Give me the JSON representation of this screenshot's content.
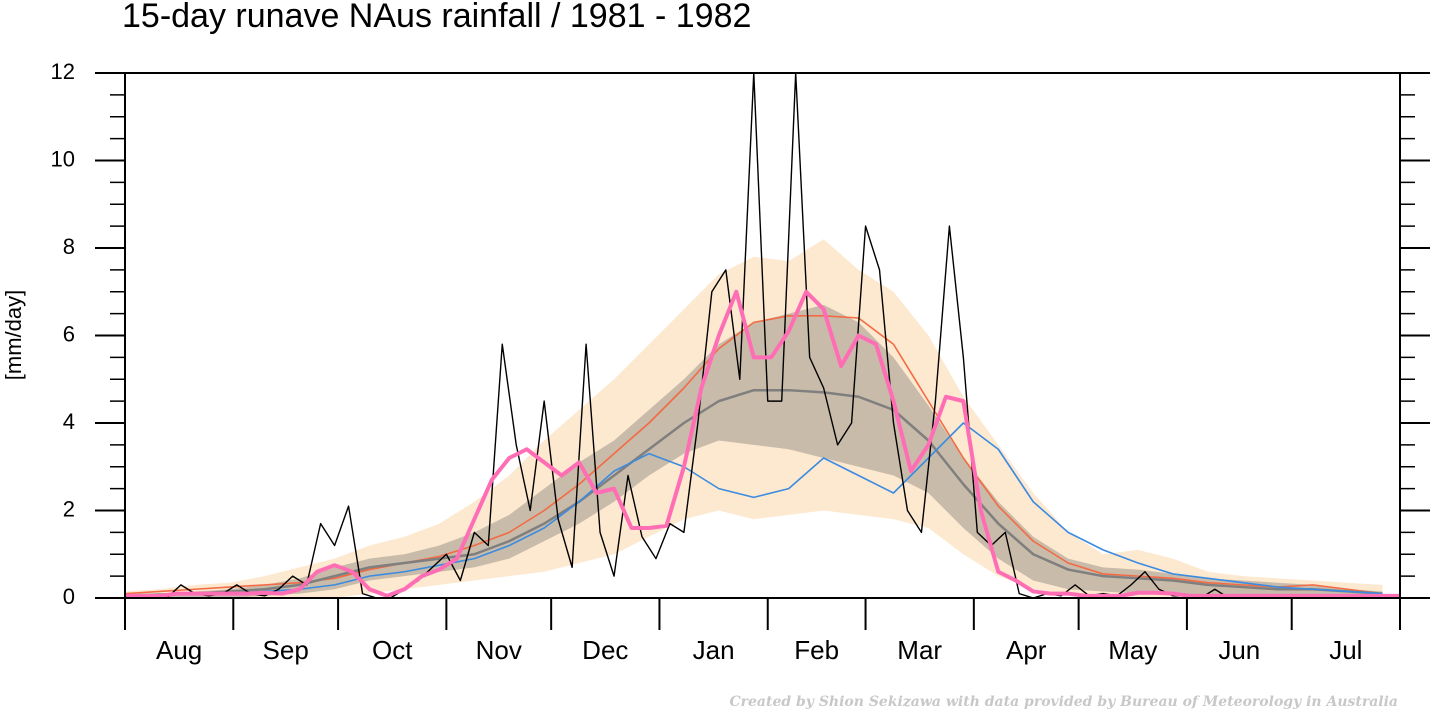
{
  "chart_data": {
    "type": "line",
    "title": "15-day runave NAus rainfall  /  1981 - 1982",
    "ylabel": "[mm/day]",
    "credit": "Created by Shion Sekizawa with data provided by Bureau of Meteorology in Australia",
    "months": [
      "Aug",
      "Sep",
      "Oct",
      "Nov",
      "Dec",
      "Jan",
      "Feb",
      "Mar",
      "Apr",
      "May",
      "Jun",
      "Jul"
    ],
    "xlim": [
      0,
      365
    ],
    "xticks": [
      0,
      31,
      61,
      92,
      122,
      153,
      184,
      212,
      243,
      273,
      304,
      334,
      365
    ],
    "ylim": [
      0,
      12
    ],
    "yticks": [
      0,
      2,
      4,
      6,
      8,
      10,
      12
    ],
    "yminorticks": [
      0.5,
      1,
      1.5,
      2.5,
      3,
      3.5,
      4.5,
      5,
      5.5,
      6.5,
      7,
      7.5,
      8.5,
      9,
      9.5,
      10.5,
      11,
      11.5
    ],
    "bands": [
      {
        "color": "#fde8d0",
        "x": [
          0,
          10,
          20,
          30,
          40,
          50,
          60,
          70,
          80,
          90,
          100,
          110,
          120,
          130,
          140,
          150,
          160,
          170,
          180,
          190,
          200,
          210,
          220,
          230,
          240,
          250,
          260,
          270,
          280,
          290,
          300,
          310,
          320,
          330,
          340,
          350,
          360
        ],
        "upper": [
          0.15,
          0.2,
          0.3,
          0.35,
          0.5,
          0.7,
          0.9,
          1.2,
          1.4,
          1.7,
          2.2,
          2.8,
          3.6,
          4.3,
          5.0,
          5.8,
          6.6,
          7.4,
          7.8,
          7.7,
          8.2,
          7.5,
          7.0,
          6.0,
          4.6,
          3.5,
          2.4,
          1.5,
          1.0,
          1.1,
          0.9,
          0.6,
          0.5,
          0.45,
          0.4,
          0.35,
          0.3
        ],
        "lower": [
          0,
          0,
          0,
          0,
          0,
          0,
          0,
          0.1,
          0.2,
          0.3,
          0.4,
          0.5,
          0.6,
          0.8,
          1.0,
          1.4,
          1.8,
          2.0,
          1.8,
          1.9,
          2.0,
          1.9,
          1.8,
          1.6,
          1.0,
          0.5,
          0.2,
          0.1,
          0.05,
          0,
          0,
          0,
          0,
          0,
          0,
          0,
          0
        ]
      },
      {
        "color": "#c9bba9",
        "x": [
          0,
          10,
          20,
          30,
          40,
          50,
          60,
          70,
          80,
          90,
          100,
          110,
          120,
          130,
          140,
          150,
          160,
          170,
          180,
          190,
          200,
          210,
          220,
          230,
          240,
          250,
          260,
          270,
          280,
          290,
          300,
          310,
          320,
          330,
          340,
          350,
          360
        ],
        "upper": [
          0.1,
          0.1,
          0.15,
          0.2,
          0.3,
          0.45,
          0.7,
          0.9,
          1.0,
          1.2,
          1.5,
          1.9,
          2.5,
          3.1,
          3.6,
          4.3,
          5.0,
          5.8,
          6.3,
          6.5,
          6.7,
          6.3,
          5.5,
          4.4,
          3.2,
          2.2,
          1.4,
          0.9,
          0.7,
          0.65,
          0.55,
          0.45,
          0.4,
          0.35,
          0.3,
          0.2,
          0.15
        ],
        "lower": [
          0,
          0,
          0,
          0,
          0.05,
          0.1,
          0.2,
          0.4,
          0.5,
          0.6,
          0.7,
          0.9,
          1.3,
          1.7,
          2.2,
          2.8,
          3.3,
          3.6,
          3.5,
          3.4,
          3.2,
          3.0,
          2.8,
          2.4,
          1.6,
          0.9,
          0.4,
          0.2,
          0.15,
          0.1,
          0.1,
          0.05,
          0.05,
          0.05,
          0.05,
          0.05,
          0
        ]
      }
    ],
    "series": [
      {
        "color": "#f26b45",
        "width": 1.6,
        "x": [
          0,
          10,
          20,
          30,
          40,
          50,
          60,
          70,
          80,
          90,
          100,
          110,
          120,
          130,
          140,
          150,
          160,
          170,
          180,
          190,
          200,
          210,
          220,
          230,
          240,
          250,
          260,
          270,
          280,
          290,
          300,
          310,
          320,
          330,
          340,
          350,
          360
        ],
        "values": [
          0.1,
          0.15,
          0.2,
          0.25,
          0.3,
          0.35,
          0.45,
          0.65,
          0.8,
          0.95,
          1.2,
          1.5,
          2.0,
          2.6,
          3.3,
          4.0,
          4.8,
          5.7,
          6.3,
          6.45,
          6.45,
          6.4,
          5.8,
          4.5,
          3.2,
          2.1,
          1.3,
          0.8,
          0.55,
          0.5,
          0.45,
          0.35,
          0.3,
          0.25,
          0.3,
          0.2,
          0.1
        ]
      },
      {
        "color": "#7f7f7f",
        "width": 2.5,
        "x": [
          0,
          10,
          20,
          30,
          40,
          50,
          60,
          70,
          80,
          90,
          100,
          110,
          120,
          130,
          140,
          150,
          160,
          170,
          180,
          190,
          200,
          210,
          220,
          230,
          240,
          250,
          260,
          270,
          280,
          290,
          300,
          310,
          320,
          330,
          340,
          350,
          360
        ],
        "values": [
          0.05,
          0.08,
          0.1,
          0.15,
          0.2,
          0.3,
          0.5,
          0.7,
          0.8,
          0.9,
          1.0,
          1.3,
          1.7,
          2.2,
          2.8,
          3.4,
          4.0,
          4.5,
          4.75,
          4.75,
          4.7,
          4.6,
          4.3,
          3.6,
          2.6,
          1.7,
          1.0,
          0.65,
          0.5,
          0.45,
          0.4,
          0.3,
          0.25,
          0.2,
          0.2,
          0.15,
          0.1
        ]
      },
      {
        "color": "#3b8ce0",
        "width": 1.6,
        "x": [
          0,
          10,
          20,
          30,
          40,
          50,
          60,
          70,
          80,
          90,
          100,
          110,
          120,
          130,
          140,
          150,
          160,
          170,
          180,
          190,
          200,
          210,
          220,
          230,
          240,
          250,
          260,
          270,
          280,
          290,
          300,
          310,
          320,
          330,
          340,
          350,
          360
        ],
        "values": [
          0.05,
          0.05,
          0.1,
          0.1,
          0.15,
          0.2,
          0.3,
          0.5,
          0.6,
          0.75,
          0.9,
          1.2,
          1.6,
          2.2,
          2.9,
          3.3,
          3.0,
          2.5,
          2.3,
          2.5,
          3.2,
          2.8,
          2.4,
          3.2,
          4.0,
          3.4,
          2.2,
          1.5,
          1.1,
          0.8,
          0.55,
          0.45,
          0.35,
          0.25,
          0.2,
          0.15,
          0.1
        ]
      },
      {
        "color": "#000000",
        "width": 1.4,
        "x": [
          0,
          4,
          8,
          12,
          16,
          20,
          24,
          28,
          32,
          36,
          40,
          44,
          48,
          52,
          56,
          60,
          64,
          68,
          72,
          76,
          80,
          84,
          88,
          92,
          96,
          100,
          104,
          108,
          112,
          116,
          120,
          124,
          128,
          132,
          136,
          140,
          144,
          148,
          152,
          156,
          160,
          164,
          168,
          172,
          176,
          180,
          184,
          188,
          192,
          196,
          200,
          204,
          208,
          212,
          216,
          220,
          224,
          228,
          232,
          236,
          240,
          244,
          248,
          252,
          256,
          260,
          264,
          268,
          272,
          276,
          280,
          284,
          288,
          292,
          296,
          300,
          304,
          308,
          312,
          316,
          320,
          324,
          328,
          332,
          336,
          340,
          344,
          348,
          352,
          356,
          360,
          364
        ],
        "values": [
          0,
          0,
          0.05,
          0,
          0.3,
          0.1,
          0.05,
          0.1,
          0.3,
          0.1,
          0.05,
          0.2,
          0.5,
          0.3,
          1.7,
          1.2,
          2.1,
          0.1,
          0,
          0,
          0.2,
          0.4,
          0.7,
          1.0,
          0.4,
          1.5,
          1.2,
          5.8,
          3.5,
          2.0,
          4.5,
          1.8,
          0.7,
          5.8,
          1.5,
          0.5,
          2.8,
          1.4,
          0.9,
          1.7,
          1.5,
          4.0,
          7.0,
          7.5,
          5.0,
          12,
          4.5,
          4.5,
          12,
          5.5,
          4.8,
          3.5,
          4.0,
          8.5,
          7.5,
          4.0,
          2.0,
          1.5,
          4.5,
          8.5,
          5.5,
          1.5,
          1.2,
          1.5,
          0.1,
          0,
          0.1,
          0.05,
          0.3,
          0.05,
          0.1,
          0.05,
          0.3,
          0.6,
          0.2,
          0.05,
          0.05,
          0,
          0.2,
          0,
          0.05,
          0,
          0,
          0.05,
          0,
          0,
          0.05,
          0,
          0,
          0,
          0,
          0
        ]
      },
      {
        "color": "#ff6eb4",
        "width": 4,
        "x": [
          0,
          5,
          10,
          15,
          20,
          25,
          30,
          35,
          40,
          45,
          50,
          55,
          60,
          65,
          70,
          75,
          80,
          85,
          90,
          95,
          100,
          105,
          110,
          115,
          120,
          125,
          130,
          135,
          140,
          145,
          150,
          155,
          160,
          165,
          170,
          175,
          180,
          185,
          190,
          195,
          200,
          205,
          210,
          215,
          220,
          225,
          230,
          235,
          240,
          245,
          250,
          255,
          260,
          265,
          270,
          275,
          280,
          285,
          290,
          295,
          300,
          305,
          310,
          315,
          320,
          325,
          330,
          335,
          340,
          345,
          350,
          355,
          360,
          365
        ],
        "values": [
          0.05,
          0.05,
          0.05,
          0.1,
          0.1,
          0.1,
          0.1,
          0.1,
          0.12,
          0.1,
          0.2,
          0.6,
          0.75,
          0.6,
          0.2,
          0.05,
          0.2,
          0.5,
          0.65,
          0.9,
          1.8,
          2.7,
          3.2,
          3.4,
          3.1,
          2.8,
          3.1,
          2.4,
          2.5,
          1.6,
          1.6,
          1.65,
          3.0,
          4.8,
          6.0,
          7.0,
          5.5,
          5.5,
          6.1,
          7.0,
          6.6,
          5.3,
          6.0,
          5.8,
          4.5,
          2.9,
          3.5,
          4.6,
          4.5,
          2.0,
          0.6,
          0.4,
          0.15,
          0.1,
          0.1,
          0.05,
          0.05,
          0.05,
          0.12,
          0.12,
          0.1,
          0.05,
          0.05,
          0.05,
          0.05,
          0.05,
          0.05,
          0.05,
          0.05,
          0.05,
          0.05,
          0.05,
          0.05,
          0.05
        ]
      }
    ]
  }
}
